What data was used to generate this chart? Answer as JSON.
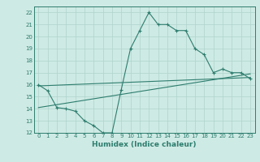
{
  "line1_x": [
    0,
    1,
    2,
    3,
    4,
    5,
    6,
    7,
    8,
    9,
    10,
    11,
    12,
    13,
    14,
    15,
    16,
    17,
    18,
    19,
    20,
    21,
    22,
    23
  ],
  "line1_y": [
    16.0,
    15.5,
    14.1,
    14.0,
    13.8,
    13.0,
    12.6,
    12.0,
    12.0,
    15.6,
    19.0,
    20.5,
    22.0,
    21.0,
    21.0,
    20.5,
    20.5,
    19.0,
    18.5,
    17.0,
    17.3,
    17.0,
    17.0,
    16.5
  ],
  "line2_x": [
    0,
    23
  ],
  "line2_y": [
    15.9,
    16.6
  ],
  "line3_x": [
    0,
    23
  ],
  "line3_y": [
    14.1,
    16.9
  ],
  "line_color": "#2d7d6e",
  "bg_color": "#ceeae4",
  "grid_color": "#aed4cc",
  "xlim": [
    -0.5,
    23.5
  ],
  "ylim": [
    12,
    22.5
  ],
  "yticks": [
    12,
    13,
    14,
    15,
    16,
    17,
    18,
    19,
    20,
    21,
    22
  ],
  "xticks": [
    0,
    1,
    2,
    3,
    4,
    5,
    6,
    7,
    8,
    9,
    10,
    11,
    12,
    13,
    14,
    15,
    16,
    17,
    18,
    19,
    20,
    21,
    22,
    23
  ],
  "xlabel": "Humidex (Indice chaleur)",
  "xlabel_fontsize": 6.5,
  "tick_fontsize": 5.0,
  "line_width": 0.8,
  "marker_size": 3.0
}
